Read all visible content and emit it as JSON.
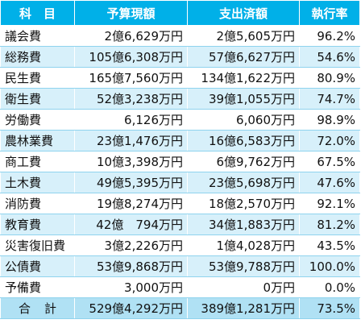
{
  "header": {
    "name": "科　目",
    "budget": "予算現額",
    "spent": "支出済額",
    "rate": "執行率"
  },
  "rows": [
    {
      "name": "議会費",
      "budget": "2億6,629万円",
      "spent": "2億5,605万円",
      "rate": "96.2%"
    },
    {
      "name": "総務費",
      "budget": "105億6,308万円",
      "spent": "57億6,627万円",
      "rate": "54.6%"
    },
    {
      "name": "民生費",
      "budget": "165億7,560万円",
      "spent": "134億1,622万円",
      "rate": "80.9%"
    },
    {
      "name": "衛生費",
      "budget": "52億3,238万円",
      "spent": "39億1,055万円",
      "rate": "74.7%"
    },
    {
      "name": "労働費",
      "budget": "6,126万円",
      "spent": "6,060万円",
      "rate": "98.9%"
    },
    {
      "name": "農林業費",
      "budget": "23億1,476万円",
      "spent": "16億6,583万円",
      "rate": "72.0%"
    },
    {
      "name": "商工費",
      "budget": "10億3,398万円",
      "spent": "6億9,762万円",
      "rate": "67.5%"
    },
    {
      "name": "土木費",
      "budget": "49億5,395万円",
      "spent": "23億5,698万円",
      "rate": "47.6%"
    },
    {
      "name": "消防費",
      "budget": "19億8,274万円",
      "spent": "18億2,570万円",
      "rate": "92.1%"
    },
    {
      "name": "教育費",
      "budget": "42億　794万円",
      "spent": "34億1,883万円",
      "rate": "81.2%"
    },
    {
      "name": "災害復旧費",
      "budget": "3億2,226万円",
      "spent": "1億4,028万円",
      "rate": "43.5%"
    },
    {
      "name": "公債費",
      "budget": "53億9,868万円",
      "spent": "53億9,788万円",
      "rate": "100.0%"
    },
    {
      "name": "予備費",
      "budget": "3,000万円",
      "spent": "0万円",
      "rate": "0.0%"
    }
  ],
  "total": {
    "name": "合　計",
    "budget": "529億4,292万円",
    "spent": "389億1,281万円",
    "rate": "73.5%"
  },
  "colors": {
    "header_bg": "#00b0e8",
    "stripe_bg": "#d7f0fa",
    "total_bg": "#b0e1f4"
  }
}
